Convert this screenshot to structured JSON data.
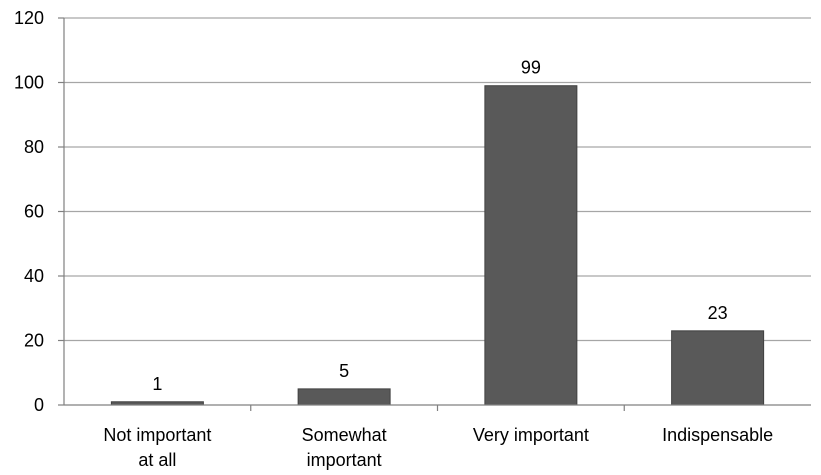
{
  "chart_data": {
    "type": "bar",
    "title": "",
    "xlabel": "",
    "ylabel": "",
    "categories": [
      [
        "Not important",
        "at all"
      ],
      [
        "Somewhat",
        "important"
      ],
      [
        "Very important"
      ],
      [
        "Indispensable"
      ]
    ],
    "values": [
      1,
      5,
      99,
      23
    ],
    "data_labels": [
      "1",
      "5",
      "99",
      "23"
    ],
    "ylim": [
      0,
      120
    ],
    "yticks": [
      "0",
      "20",
      "40",
      "60",
      "80",
      "100",
      "120"
    ],
    "grid": true,
    "legend": "none",
    "colors": {
      "bar": "#595959",
      "bar_stroke": "#404040",
      "grid": "#a6a6a6",
      "axis": "#808080"
    }
  }
}
